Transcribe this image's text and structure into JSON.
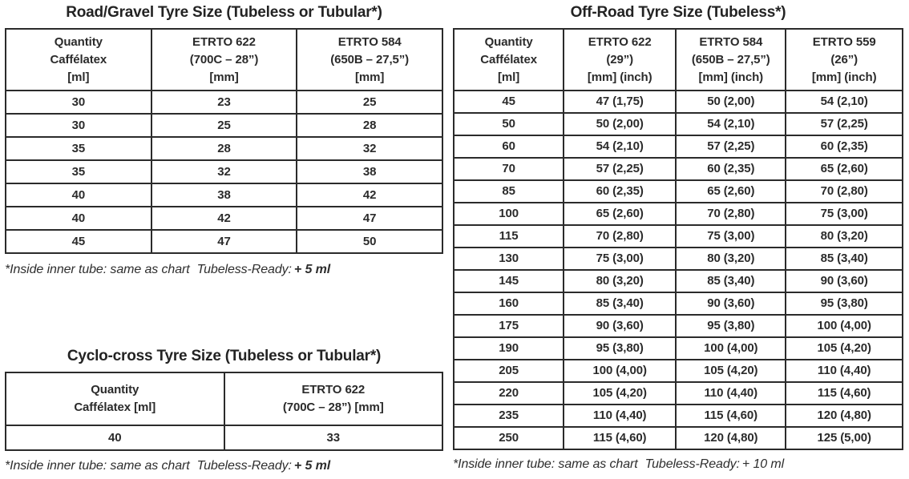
{
  "page": {
    "background": "#ffffff",
    "text_color": "#2b2b2b",
    "border_color": "#2b2b2b"
  },
  "tables": {
    "road": {
      "title": "Road/Gravel Tyre Size (Tubeless or Tubular*)",
      "columns": [
        [
          "Quantity",
          "Caffélatex",
          "[ml]"
        ],
        [
          "ETRTO 622",
          "(700C – 28”)",
          "[mm]"
        ],
        [
          "ETRTO 584",
          "(650B – 27,5”)",
          "[mm]"
        ]
      ],
      "rows": [
        [
          "30",
          "23",
          "25"
        ],
        [
          "30",
          "25",
          "28"
        ],
        [
          "35",
          "28",
          "32"
        ],
        [
          "35",
          "32",
          "38"
        ],
        [
          "40",
          "38",
          "42"
        ],
        [
          "40",
          "42",
          "47"
        ],
        [
          "45",
          "47",
          "50"
        ]
      ],
      "footnote": {
        "prefix": "*Inside inner tube: same as chart",
        "label": "Tubeless-Ready:",
        "value": "+ 5 ml"
      }
    },
    "cyclocross": {
      "title": "Cyclo-cross Tyre Size (Tubeless or Tubular*)",
      "columns": [
        [
          "Quantity",
          "Caffélatex [ml]"
        ],
        [
          "ETRTO 622",
          "(700C – 28”) [mm]"
        ]
      ],
      "rows": [
        [
          "40",
          "33"
        ]
      ],
      "footnote": {
        "prefix": "*Inside inner tube: same as chart",
        "label": "Tubeless-Ready:",
        "value": "+ 5 ml"
      }
    },
    "offroad": {
      "title": "Off-Road Tyre Size (Tubeless*)",
      "columns": [
        [
          "Quantity",
          "Caffélatex",
          "[ml]"
        ],
        [
          "ETRTO 622",
          "(29”)",
          "[mm] (inch)"
        ],
        [
          "ETRTO 584",
          "(650B – 27,5”)",
          "[mm] (inch)"
        ],
        [
          "ETRTO 559",
          "(26”)",
          "[mm] (inch)"
        ]
      ],
      "rows": [
        [
          "45",
          "47 (1,75)",
          "50 (2,00)",
          "54 (2,10)"
        ],
        [
          "50",
          "50 (2,00)",
          "54 (2,10)",
          "57 (2,25)"
        ],
        [
          "60",
          "54 (2,10)",
          "57 (2,25)",
          "60 (2,35)"
        ],
        [
          "70",
          "57 (2,25)",
          "60 (2,35)",
          "65 (2,60)"
        ],
        [
          "85",
          "60 (2,35)",
          "65 (2,60)",
          "70 (2,80)"
        ],
        [
          "100",
          "65 (2,60)",
          "70 (2,80)",
          "75 (3,00)"
        ],
        [
          "115",
          "70 (2,80)",
          "75 (3,00)",
          "80 (3,20)"
        ],
        [
          "130",
          "75 (3,00)",
          "80 (3,20)",
          "85 (3,40)"
        ],
        [
          "145",
          "80 (3,20)",
          "85 (3,40)",
          "90 (3,60)"
        ],
        [
          "160",
          "85 (3,40)",
          "90 (3,60)",
          "95 (3,80)"
        ],
        [
          "175",
          "90 (3,60)",
          "95 (3,80)",
          "100 (4,00)"
        ],
        [
          "190",
          "95 (3,80)",
          "100 (4,00)",
          "105 (4,20)"
        ],
        [
          "205",
          "100 (4,00)",
          "105 (4,20)",
          "110 (4,40)"
        ],
        [
          "220",
          "105 (4,20)",
          "110 (4,40)",
          "115 (4,60)"
        ],
        [
          "235",
          "110 (4,40)",
          "115 (4,60)",
          "120 (4,80)"
        ],
        [
          "250",
          "115 (4,60)",
          "120 (4,80)",
          "125 (5,00)"
        ]
      ],
      "footnote": {
        "prefix": "*Inside inner tube: same as chart",
        "label": "Tubeless-Ready:",
        "value": "+ 10 ml"
      }
    }
  }
}
